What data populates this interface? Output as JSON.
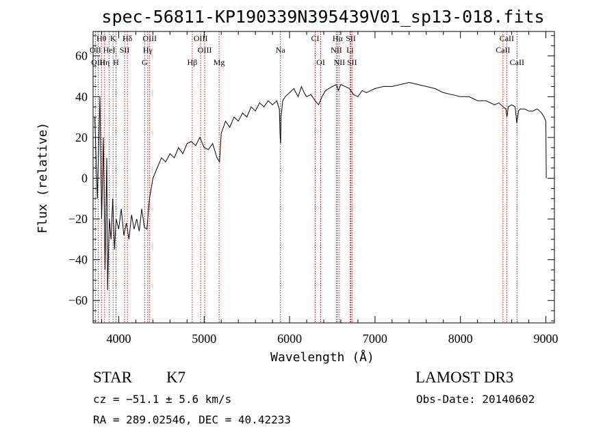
{
  "chart_data": {
    "type": "line",
    "title": "spec-56811-KP190339N395439V01_sp13-018.fits",
    "xlabel": "Wavelength (Å)",
    "ylabel": "Flux (relative)",
    "xlim": [
      3700,
      9100
    ],
    "ylim": [
      -71,
      72
    ],
    "x_ticks": [
      4000,
      5000,
      6000,
      7000,
      8000,
      9000
    ],
    "x_tick_labels": [
      "4000",
      "5000",
      "6000",
      "7000",
      "8000",
      "9000"
    ],
    "y_ticks": [
      -60,
      -40,
      -20,
      0,
      20,
      40,
      60
    ],
    "y_tick_labels": [
      "−60",
      "−40",
      "−20",
      "0",
      "20",
      "40",
      "60"
    ],
    "series": [
      {
        "name": "flux",
        "x": [
          3720,
          3750,
          3780,
          3800,
          3820,
          3840,
          3860,
          3870,
          3890,
          3910,
          3930,
          3950,
          3970,
          4000,
          4030,
          4060,
          4090,
          4120,
          4150,
          4180,
          4210,
          4240,
          4270,
          4300,
          4330,
          4360,
          4400,
          4450,
          4500,
          4550,
          4600,
          4650,
          4700,
          4750,
          4800,
          4850,
          4900,
          4950,
          5000,
          5050,
          5100,
          5150,
          5180,
          5200,
          5250,
          5300,
          5350,
          5400,
          5450,
          5500,
          5550,
          5600,
          5650,
          5700,
          5750,
          5800,
          5850,
          5880,
          5890,
          5895,
          5900,
          5920,
          5950,
          6000,
          6050,
          6100,
          6140,
          6170,
          6200,
          6250,
          6300,
          6340,
          6380,
          6420,
          6460,
          6500,
          6550,
          6560,
          6570,
          6600,
          6650,
          6700,
          6750,
          6800,
          6850,
          6900,
          6950,
          7000,
          7100,
          7200,
          7300,
          7400,
          7500,
          7600,
          7700,
          7800,
          7900,
          8000,
          8100,
          8200,
          8300,
          8400,
          8450,
          8500,
          8530,
          8545,
          8560,
          8600,
          8640,
          8660,
          8680,
          8700,
          8750,
          8800,
          8850,
          8900,
          8950,
          8980,
          9000,
          9005
        ],
        "y": [
          30,
          -10,
          40,
          -20,
          20,
          -45,
          10,
          -55,
          -20,
          -30,
          -10,
          -35,
          -20,
          -25,
          -15,
          -28,
          -22,
          -30,
          -18,
          -25,
          -20,
          -26,
          -15,
          -24,
          -25,
          -10,
          0,
          5,
          10,
          8,
          12,
          10,
          15,
          12,
          17,
          18,
          16,
          20,
          15,
          14,
          17,
          10,
          8,
          22,
          28,
          25,
          30,
          28,
          32,
          30,
          35,
          33,
          37,
          35,
          38,
          36,
          38,
          34,
          20,
          17,
          30,
          38,
          40,
          42,
          44,
          40,
          45,
          42,
          40,
          41,
          38,
          36,
          40,
          43,
          44,
          45,
          46,
          44,
          43,
          46,
          45,
          44,
          41,
          40,
          43,
          42,
          43,
          44,
          45,
          45,
          46,
          47,
          46,
          45,
          44,
          42,
          41,
          40,
          40,
          38,
          38,
          36,
          37,
          35,
          34,
          30,
          35,
          36,
          35,
          27,
          33,
          34,
          34,
          33,
          33,
          34,
          32,
          30,
          28,
          0
        ]
      }
    ],
    "emission_lines": [
      {
        "name": "Hθ",
        "wavelength": 3798,
        "row": 1
      },
      {
        "name": "K",
        "wavelength": 3934,
        "row": 1
      },
      {
        "name": "Hδ",
        "wavelength": 4102,
        "row": 1
      },
      {
        "name": "OIII",
        "wavelength": 4363,
        "row": 1
      },
      {
        "name": "OIII",
        "wavelength": 4959,
        "row": 1
      },
      {
        "name": "CI",
        "wavelength": 6300,
        "row": 1
      },
      {
        "name": "Hα",
        "wavelength": 6563,
        "row": 1
      },
      {
        "name": "SII",
        "wavelength": 6717,
        "row": 1
      },
      {
        "name": "CaII",
        "wavelength": 8542,
        "row": 1
      },
      {
        "name": "OII",
        "wavelength": 3727,
        "row": 2
      },
      {
        "name": "HeI",
        "wavelength": 3889,
        "row": 2
      },
      {
        "name": "SII",
        "wavelength": 4069,
        "row": 2
      },
      {
        "name": "Hγ",
        "wavelength": 4340,
        "row": 2
      },
      {
        "name": "OIII",
        "wavelength": 5007,
        "row": 2
      },
      {
        "name": "Na",
        "wavelength": 5893,
        "row": 2
      },
      {
        "name": "NII",
        "wavelength": 6548,
        "row": 2
      },
      {
        "name": "Li",
        "wavelength": 6708,
        "row": 2
      },
      {
        "name": "CaII",
        "wavelength": 8498,
        "row": 2
      },
      {
        "name": "OIII",
        "wavelength": 3760,
        "row": 3
      },
      {
        "name": "Hη",
        "wavelength": 3835,
        "row": 3
      },
      {
        "name": "H",
        "wavelength": 3968,
        "row": 3
      },
      {
        "name": "G",
        "wavelength": 4304,
        "row": 3
      },
      {
        "name": "Hβ",
        "wavelength": 4861,
        "row": 3
      },
      {
        "name": "Mg",
        "wavelength": 5175,
        "row": 3
      },
      {
        "name": "OI",
        "wavelength": 6364,
        "row": 3
      },
      {
        "name": "NII",
        "wavelength": 6583,
        "row": 3
      },
      {
        "name": "SII",
        "wavelength": 6731,
        "row": 3
      },
      {
        "name": "CaII",
        "wavelength": 8662,
        "row": 3
      }
    ]
  },
  "info": {
    "object_class": "STAR",
    "subclass": "K7",
    "survey": "LAMOST DR3",
    "redshift": "cz = −51.1 ± 5.6 km/s",
    "obs_date": "Obs-Date: 20140602",
    "coords": "RA = 289.02546, DEC =  40.42233"
  }
}
